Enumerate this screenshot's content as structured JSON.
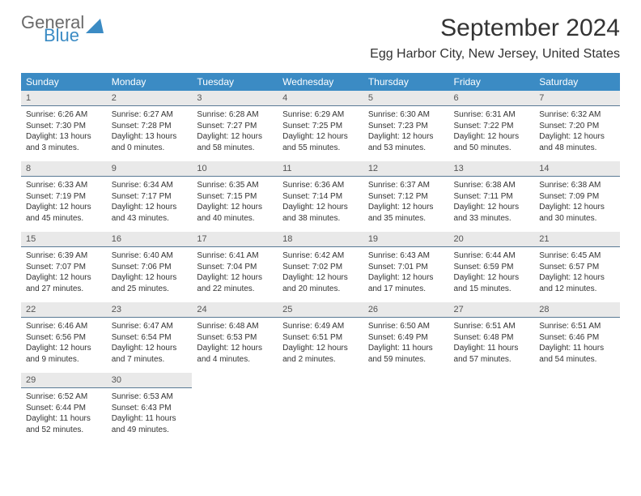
{
  "logo": {
    "line1": "General",
    "line2": "Blue"
  },
  "title": "September 2024",
  "location": "Egg Harbor City, New Jersey, United States",
  "headers": [
    "Sunday",
    "Monday",
    "Tuesday",
    "Wednesday",
    "Thursday",
    "Friday",
    "Saturday"
  ],
  "colors": {
    "header_bg": "#3b8bc4",
    "daynum_bg": "#e9e9e9",
    "daynum_border": "#5a7a95"
  },
  "days": [
    {
      "n": "1",
      "sunrise": "Sunrise: 6:26 AM",
      "sunset": "Sunset: 7:30 PM",
      "daylight": "Daylight: 13 hours and 3 minutes."
    },
    {
      "n": "2",
      "sunrise": "Sunrise: 6:27 AM",
      "sunset": "Sunset: 7:28 PM",
      "daylight": "Daylight: 13 hours and 0 minutes."
    },
    {
      "n": "3",
      "sunrise": "Sunrise: 6:28 AM",
      "sunset": "Sunset: 7:27 PM",
      "daylight": "Daylight: 12 hours and 58 minutes."
    },
    {
      "n": "4",
      "sunrise": "Sunrise: 6:29 AM",
      "sunset": "Sunset: 7:25 PM",
      "daylight": "Daylight: 12 hours and 55 minutes."
    },
    {
      "n": "5",
      "sunrise": "Sunrise: 6:30 AM",
      "sunset": "Sunset: 7:23 PM",
      "daylight": "Daylight: 12 hours and 53 minutes."
    },
    {
      "n": "6",
      "sunrise": "Sunrise: 6:31 AM",
      "sunset": "Sunset: 7:22 PM",
      "daylight": "Daylight: 12 hours and 50 minutes."
    },
    {
      "n": "7",
      "sunrise": "Sunrise: 6:32 AM",
      "sunset": "Sunset: 7:20 PM",
      "daylight": "Daylight: 12 hours and 48 minutes."
    },
    {
      "n": "8",
      "sunrise": "Sunrise: 6:33 AM",
      "sunset": "Sunset: 7:19 PM",
      "daylight": "Daylight: 12 hours and 45 minutes."
    },
    {
      "n": "9",
      "sunrise": "Sunrise: 6:34 AM",
      "sunset": "Sunset: 7:17 PM",
      "daylight": "Daylight: 12 hours and 43 minutes."
    },
    {
      "n": "10",
      "sunrise": "Sunrise: 6:35 AM",
      "sunset": "Sunset: 7:15 PM",
      "daylight": "Daylight: 12 hours and 40 minutes."
    },
    {
      "n": "11",
      "sunrise": "Sunrise: 6:36 AM",
      "sunset": "Sunset: 7:14 PM",
      "daylight": "Daylight: 12 hours and 38 minutes."
    },
    {
      "n": "12",
      "sunrise": "Sunrise: 6:37 AM",
      "sunset": "Sunset: 7:12 PM",
      "daylight": "Daylight: 12 hours and 35 minutes."
    },
    {
      "n": "13",
      "sunrise": "Sunrise: 6:38 AM",
      "sunset": "Sunset: 7:11 PM",
      "daylight": "Daylight: 12 hours and 33 minutes."
    },
    {
      "n": "14",
      "sunrise": "Sunrise: 6:38 AM",
      "sunset": "Sunset: 7:09 PM",
      "daylight": "Daylight: 12 hours and 30 minutes."
    },
    {
      "n": "15",
      "sunrise": "Sunrise: 6:39 AM",
      "sunset": "Sunset: 7:07 PM",
      "daylight": "Daylight: 12 hours and 27 minutes."
    },
    {
      "n": "16",
      "sunrise": "Sunrise: 6:40 AM",
      "sunset": "Sunset: 7:06 PM",
      "daylight": "Daylight: 12 hours and 25 minutes."
    },
    {
      "n": "17",
      "sunrise": "Sunrise: 6:41 AM",
      "sunset": "Sunset: 7:04 PM",
      "daylight": "Daylight: 12 hours and 22 minutes."
    },
    {
      "n": "18",
      "sunrise": "Sunrise: 6:42 AM",
      "sunset": "Sunset: 7:02 PM",
      "daylight": "Daylight: 12 hours and 20 minutes."
    },
    {
      "n": "19",
      "sunrise": "Sunrise: 6:43 AM",
      "sunset": "Sunset: 7:01 PM",
      "daylight": "Daylight: 12 hours and 17 minutes."
    },
    {
      "n": "20",
      "sunrise": "Sunrise: 6:44 AM",
      "sunset": "Sunset: 6:59 PM",
      "daylight": "Daylight: 12 hours and 15 minutes."
    },
    {
      "n": "21",
      "sunrise": "Sunrise: 6:45 AM",
      "sunset": "Sunset: 6:57 PM",
      "daylight": "Daylight: 12 hours and 12 minutes."
    },
    {
      "n": "22",
      "sunrise": "Sunrise: 6:46 AM",
      "sunset": "Sunset: 6:56 PM",
      "daylight": "Daylight: 12 hours and 9 minutes."
    },
    {
      "n": "23",
      "sunrise": "Sunrise: 6:47 AM",
      "sunset": "Sunset: 6:54 PM",
      "daylight": "Daylight: 12 hours and 7 minutes."
    },
    {
      "n": "24",
      "sunrise": "Sunrise: 6:48 AM",
      "sunset": "Sunset: 6:53 PM",
      "daylight": "Daylight: 12 hours and 4 minutes."
    },
    {
      "n": "25",
      "sunrise": "Sunrise: 6:49 AM",
      "sunset": "Sunset: 6:51 PM",
      "daylight": "Daylight: 12 hours and 2 minutes."
    },
    {
      "n": "26",
      "sunrise": "Sunrise: 6:50 AM",
      "sunset": "Sunset: 6:49 PM",
      "daylight": "Daylight: 11 hours and 59 minutes."
    },
    {
      "n": "27",
      "sunrise": "Sunrise: 6:51 AM",
      "sunset": "Sunset: 6:48 PM",
      "daylight": "Daylight: 11 hours and 57 minutes."
    },
    {
      "n": "28",
      "sunrise": "Sunrise: 6:51 AM",
      "sunset": "Sunset: 6:46 PM",
      "daylight": "Daylight: 11 hours and 54 minutes."
    },
    {
      "n": "29",
      "sunrise": "Sunrise: 6:52 AM",
      "sunset": "Sunset: 6:44 PM",
      "daylight": "Daylight: 11 hours and 52 minutes."
    },
    {
      "n": "30",
      "sunrise": "Sunrise: 6:53 AM",
      "sunset": "Sunset: 6:43 PM",
      "daylight": "Daylight: 11 hours and 49 minutes."
    }
  ]
}
